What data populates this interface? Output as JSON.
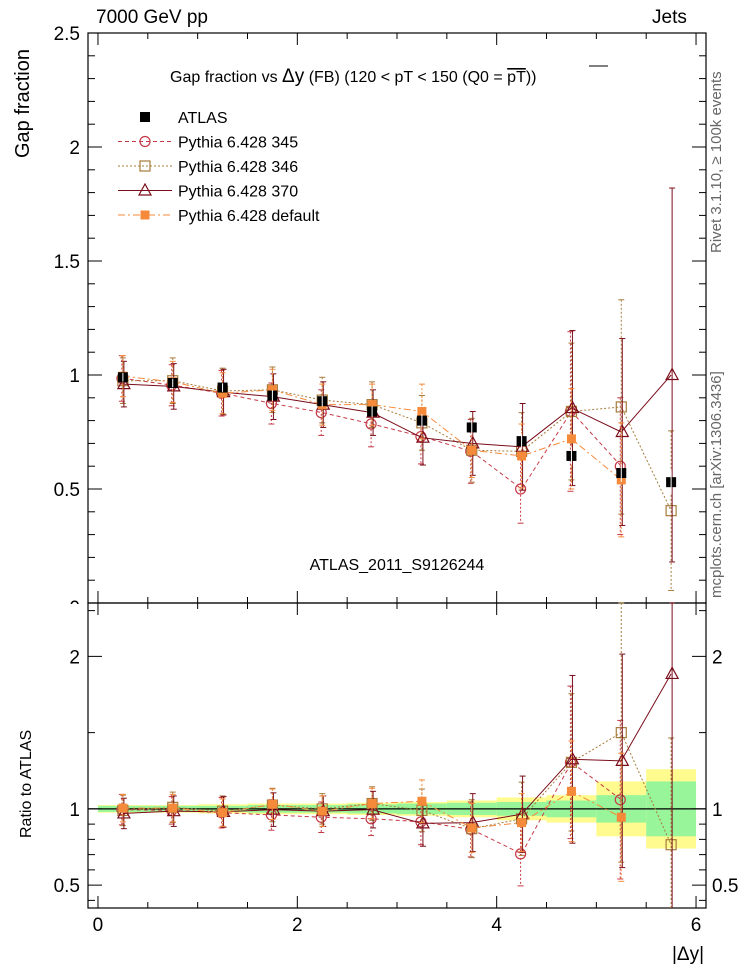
{
  "header": {
    "left": "7000 GeV pp",
    "right": "Jets"
  },
  "side": {
    "rivet": "Rivet 3.1.10, ≥ 100k events",
    "mcplots": "mcplots.cern.ch [arXiv:1306.3436]"
  },
  "chart_data": {
    "type": "scatter",
    "title_prefix": "Gap fraction vs",
    "title_var": "Δy",
    "title_suffix": "(FB) (120 < pT < 150 (Q0 = ",
    "title_overline": "pT",
    "title_end": "))",
    "analysis_label": "ATLAS_2011_S9126244",
    "ylabel": "Gap fraction",
    "ratio_ylabel": "Ratio to ATLAS",
    "xlabel": "|Δy|",
    "xlim": [
      -0.1,
      6.1
    ],
    "ylim": [
      0,
      2.5
    ],
    "ratio_ylim": [
      0.35,
      2.35
    ],
    "x_ticks": [
      "0",
      "2",
      "4",
      "6"
    ],
    "y_ticks": [
      "0.5",
      "1",
      "1.5",
      "2",
      "2.5"
    ],
    "ratio_y_ticks": [
      "0.5",
      "1",
      "2"
    ],
    "bottom_tick_partial": "0",
    "x": [
      0.25,
      0.75,
      1.25,
      1.75,
      2.25,
      2.75,
      3.25,
      3.75,
      4.25,
      4.75,
      5.25,
      5.75
    ],
    "bin_halfwidth": 0.25,
    "data": {
      "name": "ATLAS",
      "values": [
        0.99,
        0.965,
        0.945,
        0.91,
        0.885,
        0.84,
        0.8,
        0.77,
        0.71,
        0.645,
        0.57,
        0.53
      ],
      "errors": [
        0.01,
        0.01,
        0.01,
        0.015,
        0.015,
        0.015,
        0.02,
        0.025,
        0.025,
        0.03,
        0.03,
        0.04
      ],
      "color": "#000000"
    },
    "ratio_bands": {
      "stat": [
        0.02,
        0.02,
        0.02,
        0.025,
        0.025,
        0.03,
        0.035,
        0.04,
        0.045,
        0.055,
        0.09,
        0.18
      ],
      "total": [
        0.025,
        0.025,
        0.03,
        0.035,
        0.035,
        0.04,
        0.045,
        0.055,
        0.075,
        0.09,
        0.18,
        0.26
      ],
      "stat_color": "#99f59a",
      "total_color": "#fffb8f"
    },
    "series": [
      {
        "name": "Pythia 6.428 345",
        "color": "#c63a47",
        "marker": "circle",
        "dash": "4,3",
        "values": [
          0.985,
          0.955,
          0.92,
          0.875,
          0.835,
          0.785,
          0.73,
          0.665,
          0.5,
          0.84,
          0.6,
          null
        ],
        "errors": [
          0.1,
          0.09,
          0.1,
          0.09,
          0.1,
          0.1,
          0.12,
          0.14,
          0.15,
          0.35,
          0.3,
          null
        ],
        "ratio": [
          0.995,
          0.99,
          0.975,
          0.96,
          0.945,
          0.935,
          0.915,
          0.865,
          0.705,
          1.305,
          1.06,
          null
        ],
        "ratio_err": [
          0.1,
          0.09,
          0.1,
          0.1,
          0.1,
          0.11,
          0.15,
          0.18,
          0.21,
          0.5,
          0.52,
          null
        ]
      },
      {
        "name": "Pythia 6.428 346",
        "color": "#a67c3b",
        "marker": "square",
        "dash": "2,2",
        "values": [
          0.975,
          0.975,
          0.93,
          0.935,
          0.89,
          0.87,
          0.79,
          0.67,
          0.665,
          0.84,
          0.86,
          0.405
        ],
        "errors": [
          0.1,
          0.1,
          0.1,
          0.1,
          0.1,
          0.1,
          0.12,
          0.14,
          0.17,
          0.3,
          0.47,
          0.35
        ],
        "ratio": [
          0.99,
          1.01,
          0.985,
          1.025,
          1.0,
          1.035,
          0.99,
          0.87,
          0.935,
          1.305,
          1.5,
          0.765
        ],
        "ratio_err": [
          0.1,
          0.1,
          0.1,
          0.11,
          0.1,
          0.11,
          0.14,
          0.19,
          0.24,
          0.45,
          0.85,
          0.7
        ]
      },
      {
        "name": "Pythia 6.428 370",
        "color": "#7a0c1a",
        "marker": "triangle",
        "dash": "",
        "values": [
          0.96,
          0.95,
          0.925,
          0.905,
          0.87,
          0.835,
          0.725,
          0.7,
          0.685,
          0.855,
          0.75,
          1.0
        ],
        "errors": [
          0.1,
          0.1,
          0.1,
          0.1,
          0.1,
          0.1,
          0.12,
          0.14,
          0.19,
          0.34,
          0.41,
          0.82
        ],
        "ratio": [
          0.97,
          0.985,
          0.98,
          0.995,
          0.985,
          0.995,
          0.905,
          0.91,
          0.965,
          1.325,
          1.315,
          1.885
        ],
        "ratio_err": [
          0.1,
          0.1,
          0.1,
          0.11,
          0.1,
          0.12,
          0.15,
          0.19,
          0.25,
          0.55,
          0.7,
          1.6
        ]
      },
      {
        "name": "Pythia 6.428 default",
        "color": "#f58a3a",
        "marker": "filled-square",
        "dash": "7,3,2,3",
        "values": [
          0.995,
          0.97,
          0.92,
          0.935,
          0.87,
          0.87,
          0.84,
          0.67,
          0.645,
          0.72,
          0.54,
          null
        ],
        "errors": [
          0.09,
          0.09,
          0.09,
          0.09,
          0.09,
          0.09,
          0.12,
          0.12,
          0.14,
          0.22,
          0.25,
          null
        ],
        "ratio": [
          1.005,
          1.005,
          0.975,
          1.03,
          0.985,
          1.035,
          1.05,
          0.875,
          0.91,
          1.115,
          0.945,
          null
        ],
        "ratio_err": [
          0.09,
          0.09,
          0.09,
          0.1,
          0.1,
          0.1,
          0.14,
          0.16,
          0.19,
          0.33,
          0.42,
          null
        ]
      }
    ],
    "legend_placement": "top-left"
  }
}
